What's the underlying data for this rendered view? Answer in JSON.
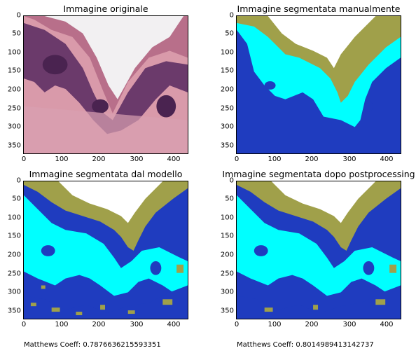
{
  "panels": [
    {
      "id": "original",
      "title": "Immagine originale",
      "kind": "histology"
    },
    {
      "id": "manual",
      "title": "Immagine segmentata manualmente",
      "kind": "segmentation-clean"
    },
    {
      "id": "model",
      "title": "Immagine segmentata dal modello",
      "kind": "segmentation-noisy"
    },
    {
      "id": "post",
      "title": "Immagine segmentata dopo postprocessing",
      "kind": "segmentation-post"
    }
  ],
  "axes": {
    "y_ticks": [
      "0",
      "50",
      "100",
      "150",
      "200",
      "250",
      "300",
      "350"
    ],
    "x_ticks": [
      "0",
      "100",
      "200",
      "300",
      "400"
    ]
  },
  "captions": {
    "model": "Matthews Coeff: 0.7876636215593351",
    "post": "Matthews Coeff: 0.8014989413142737"
  },
  "colors": {
    "white": "#ffffff",
    "olive": "#a0a04a",
    "cyan": "#00ffff",
    "blue": "#1f3cbf",
    "tissue_pink": "#d99aaa",
    "tissue_purple": "#6b3a6b",
    "tissue_dark": "#4a2350"
  }
}
